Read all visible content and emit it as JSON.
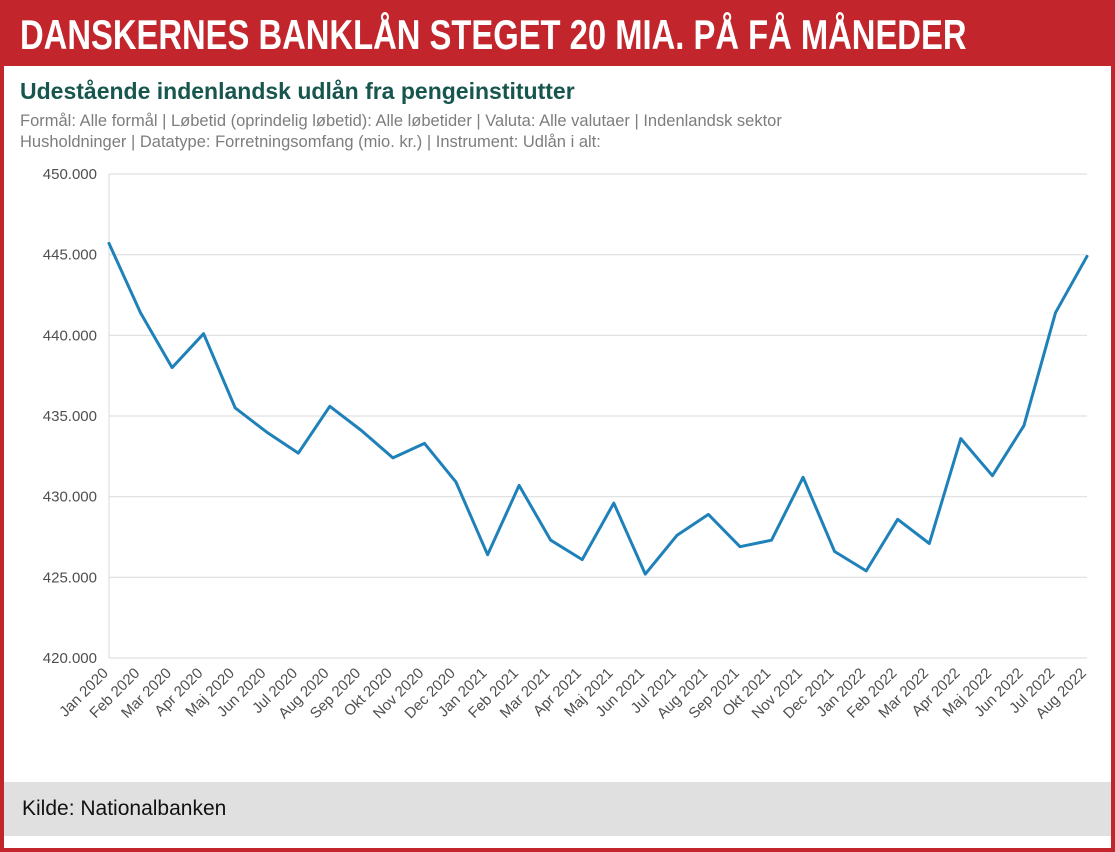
{
  "colors": {
    "banner_bg": "#c2262c",
    "border": "#c2262c",
    "title": "#17564e",
    "subtitle": "#7d7d7d",
    "line": "#1f81b9",
    "grid": "#d9d9d9",
    "axis_text": "#4f4f4f",
    "footer_bg": "#e0e0e0",
    "footer_text": "#111111"
  },
  "header": {
    "headline": "DANSKERNES BANKLÅN STEGET 20 MIA. PÅ FÅ MÅNEDER"
  },
  "chart": {
    "title": "Udestående indenlandsk udlån fra pengeinstitutter",
    "subtitle_line1": "Formål: Alle formål | Løbetid (oprindelig løbetid): Alle løbetider | Valuta: Alle valutaer | Indenlandsk sektor",
    "subtitle_line2": "Husholdninger | Datatype: Forretningsomfang (mio. kr.) | Instrument: Udlån i alt:"
  },
  "chart_data": {
    "type": "line",
    "title": "Udestående indenlandsk udlån fra pengeinstitutter",
    "unit": "mio. kr.",
    "xlabel": "",
    "ylabel": "",
    "grid": "horizontal",
    "legend": "none",
    "line_color": "#1f81b9",
    "ylim": [
      420000,
      450000
    ],
    "yticks": [
      {
        "value": 450000,
        "label": "450.000"
      },
      {
        "value": 445000,
        "label": "445.000"
      },
      {
        "value": 440000,
        "label": "440.000"
      },
      {
        "value": 435000,
        "label": "435.000"
      },
      {
        "value": 430000,
        "label": "430.000"
      },
      {
        "value": 425000,
        "label": "425.000"
      },
      {
        "value": 420000,
        "label": "420.000"
      }
    ],
    "categories": [
      "Jan 2020",
      "Feb 2020",
      "Mar 2020",
      "Apr 2020",
      "Maj 2020",
      "Jun 2020",
      "Jul 2020",
      "Aug 2020",
      "Sep 2020",
      "Okt 2020",
      "Nov 2020",
      "Dec 2020",
      "Jan 2021",
      "Feb 2021",
      "Mar 2021",
      "Apr 2021",
      "Maj 2021",
      "Jun 2021",
      "Jul 2021",
      "Aug 2021",
      "Sep 2021",
      "Okt 2021",
      "Nov 2021",
      "Dec 2021",
      "Jan 2022",
      "Feb 2022",
      "Mar 2022",
      "Apr 2022",
      "Maj 2022",
      "Jun 2022",
      "Jul 2022",
      "Aug 2022"
    ],
    "values": [
      445700,
      441400,
      438000,
      440100,
      435500,
      434000,
      432700,
      435600,
      434100,
      432400,
      433300,
      430900,
      426400,
      430700,
      427300,
      426100,
      429600,
      425200,
      427600,
      428900,
      426900,
      427300,
      431200,
      426600,
      425400,
      428600,
      427100,
      433600,
      431300,
      434400,
      441400,
      444900
    ]
  },
  "footer": {
    "source": "Kilde: Nationalbanken"
  }
}
